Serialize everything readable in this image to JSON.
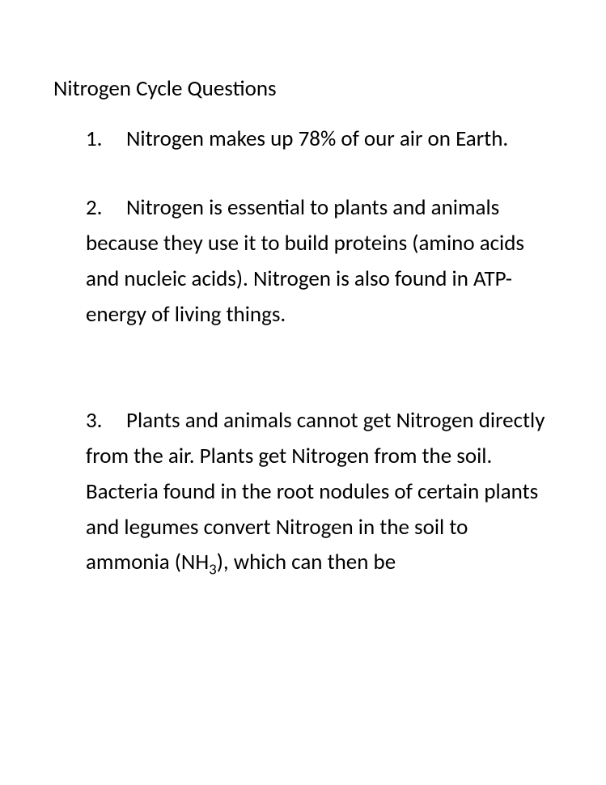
{
  "title": "Nitrogen Cycle Questions",
  "items": [
    {
      "num": "1.",
      "first": "Nitrogen makes up 78% of our air on",
      "rest": "Earth."
    },
    {
      "num": "2.",
      "first": "Nitrogen is essential to plants and",
      "rest": "animals because they use it to build proteins (amino acids and nucleic acids). Nitrogen is also found in ATP- energy of living things."
    },
    {
      "num": "3.",
      "first": "Plants and animals cannot get",
      "rest_html": "Nitrogen directly from the air. Plants get Nitrogen from the soil. Bacteria found in the root nodules of certain plants and legumes convert Nitrogen in the soil to ammonia (NH<sub>3</sub>), which can then be"
    }
  ],
  "colors": {
    "text": "#000000",
    "background": "#ffffff"
  },
  "typography": {
    "font_family": "Calibri",
    "font_size_pt": 20,
    "line_height": 1.62
  }
}
